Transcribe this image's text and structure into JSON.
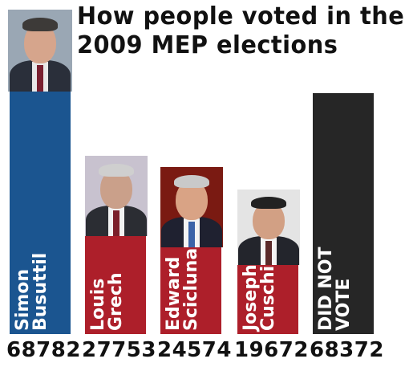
{
  "chart_data": {
    "type": "bar",
    "title": "How people voted in the 2009 MEP elections",
    "title_lines": [
      "How people voted in the",
      "2009 MEP elections"
    ],
    "categories": [
      "Simon\nBusuttil",
      "Louis\nGrech",
      "Edward\nScicluna",
      "Joseph\nCuschieri",
      "DID NOT\nVOTE"
    ],
    "values": [
      68782,
      27753,
      24574,
      19672,
      68372
    ],
    "value_labels": [
      "68782",
      "27753",
      "24574",
      "19672",
      "68372"
    ],
    "bar_colors": [
      "#1b5590",
      "#ad1f2a",
      "#ad1f2a",
      "#ad1f2a",
      "#262626"
    ],
    "ylim": [
      0,
      68782
    ],
    "grid": false,
    "legend": "none"
  },
  "colors": {
    "blue": "#1b5590",
    "red": "#ad1f2a",
    "black": "#262626",
    "text": "#111111"
  }
}
